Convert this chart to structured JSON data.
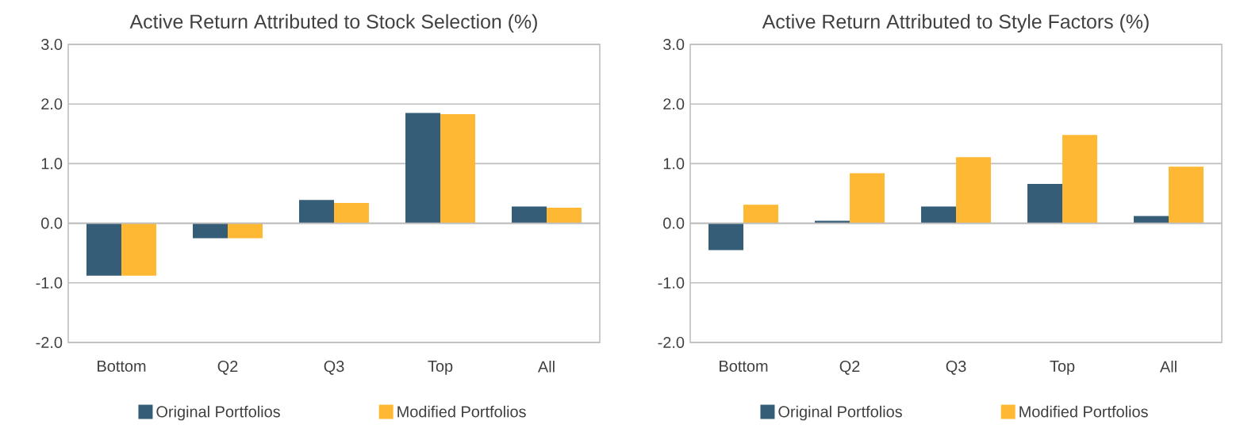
{
  "chart_data": [
    {
      "type": "bar",
      "title": "Active Return Attributed to Stock Selection (%)",
      "categories": [
        "Bottom",
        "Q2",
        "Q3",
        "Top",
        "All"
      ],
      "series": [
        {
          "name": "Original Portfolios",
          "color": "#365d78",
          "values": [
            -0.88,
            -0.25,
            0.39,
            1.85,
            0.28
          ]
        },
        {
          "name": "Modified Portfolios",
          "color": "#ffb833",
          "values": [
            -0.88,
            -0.25,
            0.34,
            1.83,
            0.26
          ]
        }
      ],
      "ylim": [
        -2,
        3
      ],
      "yticks": [
        {
          "value": -2,
          "label": "-2.0"
        },
        {
          "value": -1,
          "label": "-1.0"
        },
        {
          "value": 0,
          "label": "0.0"
        },
        {
          "value": 1,
          "label": "1.0"
        },
        {
          "value": 2,
          "label": "2.0"
        },
        {
          "value": 3,
          "label": "3.0"
        }
      ],
      "grid": "y",
      "legend": "bottom"
    },
    {
      "type": "bar",
      "title": "Active Return Attributed to Style Factors (%)",
      "categories": [
        "Bottom",
        "Q2",
        "Q3",
        "Top",
        "All"
      ],
      "series": [
        {
          "name": "Original Portfolios",
          "color": "#365d78",
          "values": [
            -0.45,
            0.04,
            0.28,
            0.66,
            0.12
          ]
        },
        {
          "name": "Modified Portfolios",
          "color": "#ffb833",
          "values": [
            0.31,
            0.84,
            1.11,
            1.48,
            0.95
          ]
        }
      ],
      "ylim": [
        -2,
        3
      ],
      "yticks": [
        {
          "value": -2,
          "label": "-2.0"
        },
        {
          "value": -1,
          "label": "-1.0"
        },
        {
          "value": 0,
          "label": "0.0"
        },
        {
          "value": 1,
          "label": "1.0"
        },
        {
          "value": 2,
          "label": "2.0"
        },
        {
          "value": 3,
          "label": "3.0"
        }
      ],
      "grid": "y",
      "legend": "bottom"
    }
  ]
}
